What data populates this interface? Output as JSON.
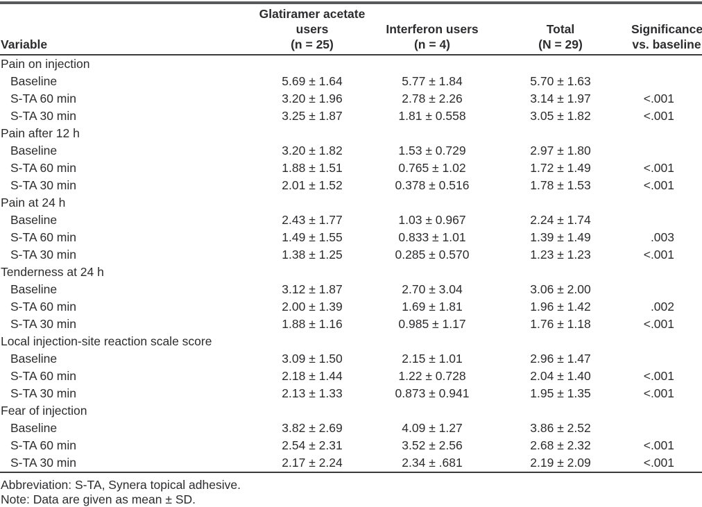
{
  "table": {
    "columns": [
      {
        "label": "Variable"
      },
      {
        "label": "Glatiramer acetate\nusers\n(n = 25)"
      },
      {
        "label": "Interferon users\n(n = 4)"
      },
      {
        "label": "Total\n(N = 29)"
      },
      {
        "label": "Significance\nvs. baseline"
      }
    ],
    "sections": [
      {
        "title": "Pain on injection",
        "rows": [
          {
            "label": "Baseline",
            "glatiramer": "5.69 ± 1.64",
            "interferon": "5.77 ± 1.84",
            "total": "5.70 ± 1.63",
            "significance": ""
          },
          {
            "label": "S-TA 60 min",
            "glatiramer": "3.20 ± 1.96",
            "interferon": "2.78 ± 2.26",
            "total": "3.14 ± 1.97",
            "significance": "<.001"
          },
          {
            "label": "S-TA 30 min",
            "glatiramer": "3.25 ± 1.87",
            "interferon": "1.81 ± 0.558",
            "total": "3.05 ± 1.82",
            "significance": "<.001"
          }
        ]
      },
      {
        "title": "Pain after 12 h",
        "rows": [
          {
            "label": "Baseline",
            "glatiramer": "3.20 ± 1.82",
            "interferon": "1.53 ± 0.729",
            "total": "2.97 ± 1.80",
            "significance": ""
          },
          {
            "label": "S-TA 60 min",
            "glatiramer": "1.88 ± 1.51",
            "interferon": "0.765 ± 1.02",
            "total": "1.72 ± 1.49",
            "significance": "<.001"
          },
          {
            "label": "S-TA 30 min",
            "glatiramer": "2.01 ± 1.52",
            "interferon": "0.378 ± 0.516",
            "total": "1.78 ± 1.53",
            "significance": "<.001"
          }
        ]
      },
      {
        "title": "Pain at 24 h",
        "rows": [
          {
            "label": "Baseline",
            "glatiramer": "2.43 ± 1.77",
            "interferon": "1.03 ± 0.967",
            "total": "2.24 ± 1.74",
            "significance": ""
          },
          {
            "label": "S-TA 60 min",
            "glatiramer": "1.49 ± 1.55",
            "interferon": "0.833 ± 1.01",
            "total": "1.39 ± 1.49",
            "significance": ".003"
          },
          {
            "label": "S-TA 30 min",
            "glatiramer": "1.38 ± 1.25",
            "interferon": "0.285 ± 0.570",
            "total": "1.23 ± 1.23",
            "significance": "<.001"
          }
        ]
      },
      {
        "title": "Tenderness at 24 h",
        "rows": [
          {
            "label": "Baseline",
            "glatiramer": "3.12 ± 1.87",
            "interferon": "2.70 ± 3.04",
            "total": "3.06 ± 2.00",
            "significance": ""
          },
          {
            "label": "S-TA 60 min",
            "glatiramer": "2.00 ± 1.39",
            "interferon": "1.69 ± 1.81",
            "total": "1.96 ± 1.42",
            "significance": ".002"
          },
          {
            "label": "S-TA 30 min",
            "glatiramer": "1.88 ± 1.16",
            "interferon": "0.985 ± 1.17",
            "total": "1.76 ± 1.18",
            "significance": "<.001"
          }
        ]
      },
      {
        "title": "Local injection-site reaction scale score",
        "rows": [
          {
            "label": "Baseline",
            "glatiramer": "3.09 ± 1.50",
            "interferon": "2.15 ± 1.01",
            "total": "2.96 ± 1.47",
            "significance": ""
          },
          {
            "label": "S-TA 60 min",
            "glatiramer": "2.18 ± 1.44",
            "interferon": "1.22 ± 0.728",
            "total": "2.04 ± 1.40",
            "significance": "<.001"
          },
          {
            "label": "S-TA 30 min",
            "glatiramer": "2.13 ± 1.33",
            "interferon": "0.873 ± 0.941",
            "total": "1.95 ± 1.35",
            "significance": "<.001"
          }
        ]
      },
      {
        "title": "Fear of injection",
        "rows": [
          {
            "label": "Baseline",
            "glatiramer": "3.82 ± 2.69",
            "interferon": "4.09 ± 1.27",
            "total": "3.86 ± 2.52",
            "significance": ""
          },
          {
            "label": "S-TA 60 min",
            "glatiramer": "2.54 ± 2.31",
            "interferon": "3.52 ± 2.56",
            "total": "2.68 ± 2.32",
            "significance": "<.001"
          },
          {
            "label": "S-TA 30 min",
            "glatiramer": "2.17 ± 2.24",
            "interferon": "2.34 ± .681",
            "total": "2.19 ± 2.09",
            "significance": "<.001"
          }
        ]
      }
    ]
  },
  "footnotes": {
    "abbreviation": "Abbreviation: S-TA, Synera topical adhesive.",
    "note": "Note: Data are given as mean ± SD."
  },
  "colors": {
    "text": "#2c2c2e",
    "rule_heavy": "#595a5c",
    "rule_dark": "#39393b",
    "background": "#ffffff"
  }
}
